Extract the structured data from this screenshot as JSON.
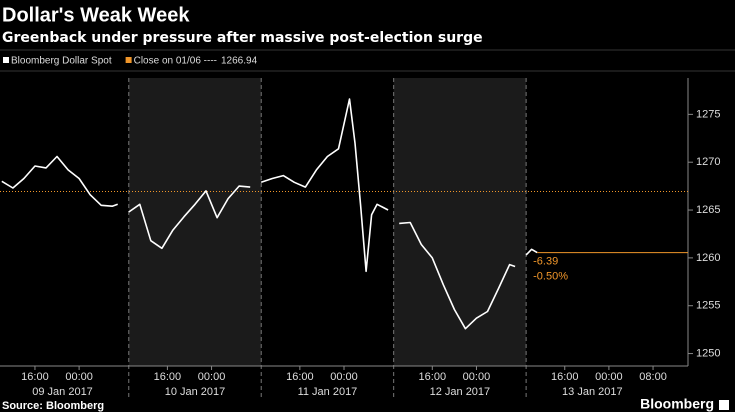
{
  "chart_data": {
    "type": "line",
    "title": "Dollar's Weak Week",
    "subtitle": "Greenback under pressure after massive post-election surge",
    "source": "Source: Bloomberg",
    "brand": "Bloomberg",
    "x": [
      "2017-01-09T10:00",
      "2017-01-09T12:00",
      "2017-01-09T14:00",
      "2017-01-09T16:00",
      "2017-01-09T18:00",
      "2017-01-09T20:00",
      "2017-01-09T22:00",
      "2017-01-10T00:00",
      "2017-01-10T02:00",
      "2017-01-10T04:00",
      "2017-01-10T06:00",
      "2017-01-10T07:00",
      "2017-01-10T08:00",
      "2017-01-10T09:00",
      "2017-01-10T11:00",
      "2017-01-10T13:00",
      "2017-01-10T15:00",
      "2017-01-10T17:00",
      "2017-01-10T19:00",
      "2017-01-10T21:00",
      "2017-01-10T23:00",
      "2017-01-11T01:00",
      "2017-01-11T03:00",
      "2017-01-11T05:00",
      "2017-01-11T07:00",
      "2017-01-11T08:00",
      "2017-01-11T09:00",
      "2017-01-11T11:00",
      "2017-01-11T13:00",
      "2017-01-11T15:00",
      "2017-01-11T17:00",
      "2017-01-11T19:00",
      "2017-01-11T21:00",
      "2017-01-11T23:00",
      "2017-01-12T00:00",
      "2017-01-12T01:00",
      "2017-01-12T02:00",
      "2017-01-12T03:00",
      "2017-01-12T04:00",
      "2017-01-12T05:00",
      "2017-01-12T06:00",
      "2017-01-12T08:00",
      "2017-01-12T09:00",
      "2017-01-12T10:00",
      "2017-01-12T12:00",
      "2017-01-12T14:00",
      "2017-01-12T16:00",
      "2017-01-12T18:00",
      "2017-01-12T20:00",
      "2017-01-12T22:00",
      "2017-01-13T00:00",
      "2017-01-13T02:00",
      "2017-01-13T04:00",
      "2017-01-13T06:00",
      "2017-01-13T07:00",
      "2017-01-13T08:00",
      "2017-01-13T09:00",
      "2017-01-13T10:00",
      "2017-01-13T11:00"
    ],
    "series": [
      {
        "name": "Bloomberg Dollar Spot",
        "color": "#ffffff",
        "values": [
          1268.0,
          1267.3,
          1268.3,
          1269.6,
          1269.4,
          1270.6,
          1269.2,
          1268.3,
          1266.6,
          1265.5,
          1265.4,
          1265.6,
          null,
          1264.8,
          1265.6,
          1261.8,
          1261.0,
          1262.9,
          1264.3,
          1265.6,
          1267.0,
          1264.2,
          1266.2,
          1267.5,
          1267.4,
          null,
          1267.9,
          1268.3,
          1268.6,
          1267.9,
          1267.4,
          1269.2,
          1270.6,
          1271.4,
          1274.0,
          1276.6,
          1272.0,
          1265.5,
          1258.6,
          1264.5,
          1265.6,
          1265.0,
          null,
          1263.6,
          1263.7,
          1261.4,
          1260.0,
          1257.2,
          1254.6,
          1252.6,
          1253.7,
          1254.4,
          1256.8,
          1259.3,
          1259.1,
          null,
          1260.3,
          1260.9,
          1260.55
        ]
      }
    ],
    "reference": {
      "label": "Close on 01/06 ----",
      "value": 1266.94,
      "color": "#f0962a"
    },
    "annotations": [
      "-6.39",
      "-0.50%"
    ],
    "xlim": [
      "2017-01-09T09:40",
      "2017-01-14T14:20"
    ],
    "xticks": [
      {
        "value": "2017-01-09T16:00",
        "label": "16:00"
      },
      {
        "value": "2017-01-10T00:00",
        "label": "00:00"
      },
      {
        "value": "2017-01-10T16:00",
        "label": "16:00"
      },
      {
        "value": "2017-01-11T00:00",
        "label": "00:00"
      },
      {
        "value": "2017-01-11T16:00",
        "label": "16:00"
      },
      {
        "value": "2017-01-12T00:00",
        "label": "00:00"
      },
      {
        "value": "2017-01-12T16:00",
        "label": "16:00"
      },
      {
        "value": "2017-01-13T00:00",
        "label": "00:00"
      },
      {
        "value": "2017-01-13T16:00",
        "label": "16:00"
      },
      {
        "value": "2017-01-14T00:00",
        "label": "00:00"
      },
      {
        "value": "2017-01-14T08:00",
        "label": "08:00"
      }
    ],
    "x_groups": [
      {
        "value": "2017-01-09T21:00",
        "label": "09 Jan 2017"
      },
      {
        "value": "2017-01-10T21:00",
        "label": "10 Jan 2017"
      },
      {
        "value": "2017-01-11T21:00",
        "label": "11 Jan 2017"
      },
      {
        "value": "2017-01-12T21:00",
        "label": "12 Jan 2017"
      },
      {
        "value": "2017-01-13T21:00",
        "label": "13 Jan 2017"
      }
    ],
    "x_dividers": [
      "2017-01-10T09:00",
      "2017-01-11T09:00",
      "2017-01-12T09:00",
      "2017-01-13T09:00"
    ],
    "shaded": [
      [
        "2017-01-10T09:00",
        "2017-01-11T09:00"
      ],
      [
        "2017-01-12T09:00",
        "2017-01-13T09:00"
      ]
    ],
    "ylim": [
      1248.7,
      1278.8
    ],
    "yticks": [
      1250,
      1255,
      1260,
      1265,
      1270,
      1275
    ],
    "grid": false
  }
}
